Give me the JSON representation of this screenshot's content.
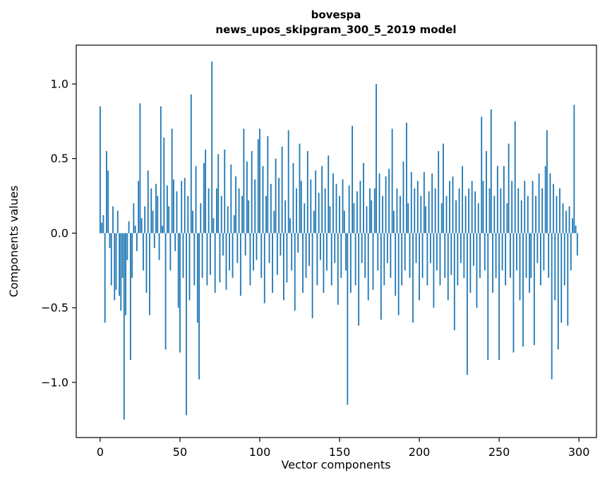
{
  "chart_data": {
    "type": "bar",
    "title": "bovespa",
    "subtitle": "news_upos_skipgram_300_5_2019 model",
    "xlabel": "Vector components",
    "ylabel": "Components values",
    "bar_color": "#1f77b4",
    "background_color": "#ffffff",
    "grid": false,
    "legend": "none",
    "xlim": [
      -15,
      311
    ],
    "ylim": [
      -1.37,
      1.26
    ],
    "x_ticks": [
      0,
      50,
      100,
      150,
      200,
      250,
      300
    ],
    "x_tick_labels": [
      "0",
      "50",
      "100",
      "150",
      "200",
      "250",
      "300"
    ],
    "y_ticks": [
      -1.0,
      -0.5,
      0.0,
      0.5,
      1.0
    ],
    "y_tick_labels": [
      "−1.0",
      "−0.5",
      "0.0",
      "0.5",
      "1.0"
    ],
    "x_start": 0,
    "values": [
      0.85,
      0.07,
      0.12,
      -0.6,
      0.55,
      0.42,
      -0.1,
      -0.35,
      0.18,
      -0.45,
      -0.38,
      0.15,
      -0.42,
      -0.52,
      -0.3,
      -1.25,
      -0.55,
      -0.18,
      0.08,
      -0.85,
      -0.3,
      0.2,
      0.05,
      -0.12,
      0.35,
      0.87,
      0.1,
      -0.25,
      0.18,
      -0.4,
      0.42,
      -0.55,
      0.3,
      0.15,
      -0.1,
      0.33,
      0.25,
      -0.18,
      0.85,
      0.05,
      0.64,
      -0.78,
      0.32,
      0.18,
      -0.25,
      0.7,
      0.36,
      -0.12,
      0.28,
      -0.5,
      -0.8,
      0.35,
      -0.3,
      0.37,
      -1.22,
      0.25,
      -0.45,
      0.93,
      0.15,
      -0.35,
      0.45,
      -0.6,
      -0.98,
      0.2,
      -0.3,
      0.47,
      0.56,
      -0.35,
      0.3,
      -0.28,
      1.15,
      0.1,
      -0.4,
      0.3,
      0.53,
      -0.33,
      0.25,
      -0.15,
      0.56,
      -0.38,
      0.18,
      -0.25,
      0.46,
      -0.3,
      0.12,
      0.38,
      -0.2,
      0.3,
      -0.42,
      0.25,
      0.7,
      -0.15,
      0.48,
      0.22,
      -0.35,
      0.55,
      -0.25,
      0.36,
      -0.18,
      0.63,
      0.7,
      -0.3,
      0.45,
      -0.47,
      0.25,
      0.65,
      -0.2,
      0.33,
      -0.4,
      0.15,
      0.5,
      -0.28,
      0.37,
      -0.15,
      0.58,
      -0.45,
      0.22,
      -0.33,
      0.69,
      0.1,
      -0.25,
      0.47,
      -0.52,
      0.3,
      -0.13,
      0.6,
      0.35,
      -0.4,
      0.2,
      -0.3,
      0.55,
      -0.22,
      0.36,
      -0.57,
      0.15,
      0.42,
      -0.35,
      0.27,
      -0.18,
      0.45,
      -0.4,
      0.3,
      -0.25,
      0.52,
      0.18,
      -0.35,
      0.4,
      -0.2,
      0.33,
      -0.48,
      0.25,
      -0.3,
      0.36,
      0.15,
      -0.25,
      -1.15,
      0.32,
      -0.4,
      0.72,
      0.2,
      -0.35,
      0.28,
      -0.62,
      0.35,
      -0.2,
      0.47,
      -0.3,
      0.18,
      -0.45,
      0.3,
      0.22,
      -0.38,
      0.3,
      1.0,
      -0.25,
      0.4,
      -0.58,
      0.25,
      -0.35,
      0.38,
      -0.2,
      0.43,
      -0.3,
      0.7,
      0.15,
      -0.42,
      0.3,
      -0.55,
      0.25,
      -0.35,
      0.48,
      -0.25,
      0.74,
      0.2,
      -0.3,
      0.41,
      -0.6,
      0.3,
      -0.2,
      0.35,
      -0.45,
      0.25,
      -0.3,
      0.41,
      0.18,
      -0.35,
      0.28,
      -0.2,
      0.4,
      -0.5,
      0.3,
      -0.25,
      0.55,
      -0.35,
      0.2,
      0.6,
      -0.3,
      0.25,
      -0.45,
      0.35,
      -0.28,
      0.38,
      -0.65,
      0.22,
      -0.35,
      0.3,
      -0.2,
      0.45,
      -0.3,
      0.25,
      -0.95,
      0.3,
      -0.4,
      0.35,
      -0.22,
      0.28,
      -0.5,
      0.2,
      -0.3,
      0.78,
      0.35,
      -0.25,
      0.55,
      -0.85,
      0.3,
      0.83,
      -0.4,
      0.25,
      -0.3,
      0.45,
      -0.85,
      0.3,
      -0.25,
      0.45,
      -0.35,
      0.2,
      0.6,
      -0.3,
      0.35,
      -0.8,
      0.75,
      -0.25,
      0.3,
      -0.45,
      0.22,
      -0.76,
      0.35,
      -0.3,
      0.25,
      -0.4,
      -0.3,
      0.35,
      -0.75,
      0.25,
      -0.2,
      0.4,
      -0.35,
      0.3,
      -0.25,
      0.45,
      0.69,
      -0.3,
      0.4,
      -0.98,
      0.33,
      -0.45,
      0.25,
      -0.78,
      0.3,
      -0.6,
      0.2,
      -0.35,
      0.15,
      -0.62,
      0.18,
      -0.25,
      0.1,
      0.86,
      0.05,
      -0.15
    ]
  }
}
